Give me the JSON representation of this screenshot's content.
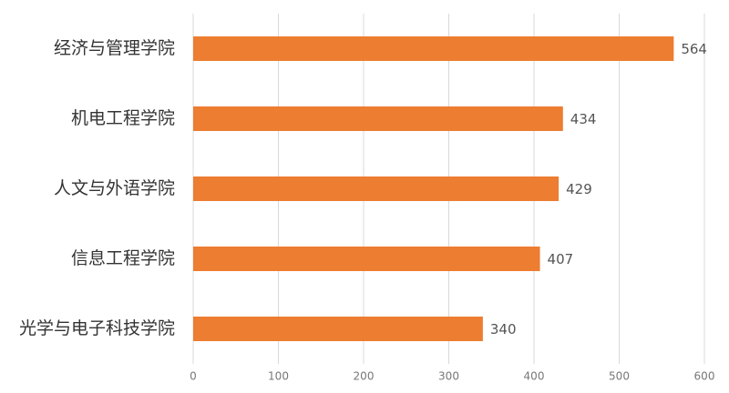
{
  "chart_data": {
    "type": "bar",
    "orientation": "horizontal",
    "categories": [
      "经济与管理学院",
      "机电工程学院",
      "人文与外语学院",
      "信息工程学院",
      "光学与电子科技学院"
    ],
    "values": [
      564,
      434,
      429,
      407,
      340
    ],
    "color": "#ed7d31",
    "xlim": [
      0,
      600
    ],
    "xticks": [
      0,
      100,
      200,
      300,
      400,
      500,
      600
    ],
    "grid": true
  }
}
